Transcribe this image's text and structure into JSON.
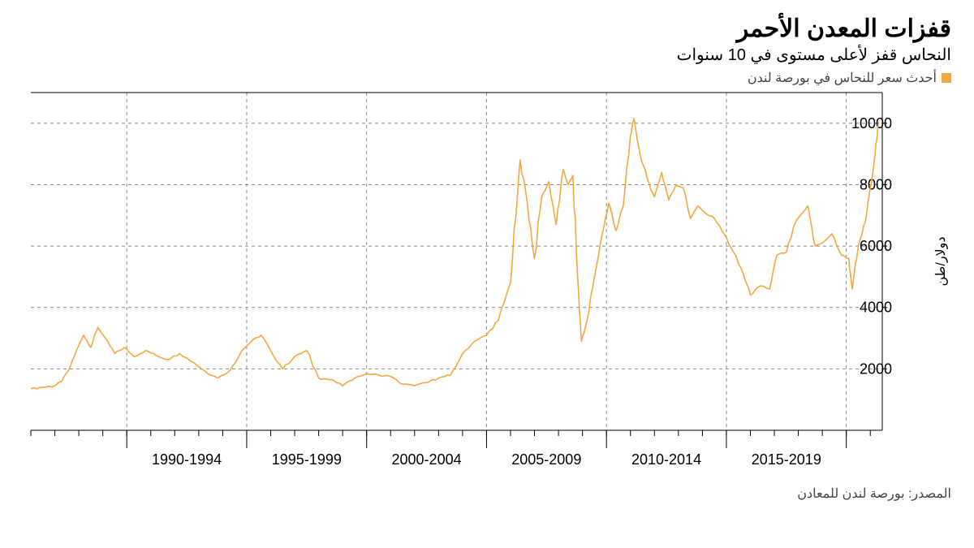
{
  "title": "قفزات المعدن الأحمر",
  "subtitle": "النحاس قفز لأعلى مستوى في 10 سنوات",
  "legend": {
    "label": "أحدث سعر للنحاس في بورصة لندن",
    "swatch_color": "#f5a742"
  },
  "source": "المصدر: بورصة لندن للمعادن",
  "chart": {
    "type": "line",
    "line_color": "#f5a742",
    "line_width": 1.6,
    "background_color": "#ffffff",
    "grid_color": "#888888",
    "grid_dash": "4 4",
    "border_color": "#000000",
    "y_axis": {
      "title": "دولار/طن",
      "min": 0,
      "max": 11000,
      "ticks": [
        2000,
        4000,
        6000,
        8000,
        10000
      ],
      "tick_fontsize": 18
    },
    "x_axis": {
      "min": 1986,
      "max": 2021.5,
      "group_labels": [
        "1990-1994",
        "1995-1999",
        "2000-2004",
        "2005-2009",
        "2010-2014",
        "2015-2019"
      ],
      "group_boundaries": [
        1990,
        1995,
        2000,
        2005,
        2010,
        2015,
        2020
      ],
      "minor_ticks": [
        1986,
        1987,
        1988,
        1989,
        1990,
        1991,
        1992,
        1993,
        1994,
        1995,
        1996,
        1997,
        1998,
        1999,
        2000,
        2001,
        2002,
        2003,
        2004,
        2005,
        2006,
        2007,
        2008,
        2009,
        2010,
        2011,
        2012,
        2013,
        2014,
        2015,
        2016,
        2017,
        2018,
        2019,
        2020,
        2021
      ],
      "tick_fontsize": 18
    },
    "series": [
      {
        "x": 1986.0,
        "y": 1350
      },
      {
        "x": 1986.5,
        "y": 1400
      },
      {
        "x": 1987.0,
        "y": 1450
      },
      {
        "x": 1987.3,
        "y": 1600
      },
      {
        "x": 1987.6,
        "y": 2000
      },
      {
        "x": 1987.9,
        "y": 2600
      },
      {
        "x": 1988.2,
        "y": 3100
      },
      {
        "x": 1988.5,
        "y": 2700
      },
      {
        "x": 1988.8,
        "y": 3350
      },
      {
        "x": 1989.1,
        "y": 3000
      },
      {
        "x": 1989.5,
        "y": 2500
      },
      {
        "x": 1989.9,
        "y": 2700
      },
      {
        "x": 1990.3,
        "y": 2400
      },
      {
        "x": 1990.8,
        "y": 2600
      },
      {
        "x": 1991.2,
        "y": 2450
      },
      {
        "x": 1991.7,
        "y": 2300
      },
      {
        "x": 1992.2,
        "y": 2500
      },
      {
        "x": 1992.8,
        "y": 2200
      },
      {
        "x": 1993.3,
        "y": 1900
      },
      {
        "x": 1993.8,
        "y": 1700
      },
      {
        "x": 1994.3,
        "y": 1950
      },
      {
        "x": 1994.8,
        "y": 2600
      },
      {
        "x": 1995.2,
        "y": 2900
      },
      {
        "x": 1995.6,
        "y": 3100
      },
      {
        "x": 1996.0,
        "y": 2600
      },
      {
        "x": 1996.5,
        "y": 2000
      },
      {
        "x": 1997.0,
        "y": 2400
      },
      {
        "x": 1997.5,
        "y": 2600
      },
      {
        "x": 1998.0,
        "y": 1700
      },
      {
        "x": 1998.5,
        "y": 1650
      },
      {
        "x": 1999.0,
        "y": 1450
      },
      {
        "x": 1999.5,
        "y": 1700
      },
      {
        "x": 2000.0,
        "y": 1850
      },
      {
        "x": 2000.5,
        "y": 1800
      },
      {
        "x": 2001.0,
        "y": 1750
      },
      {
        "x": 2001.5,
        "y": 1500
      },
      {
        "x": 2002.0,
        "y": 1450
      },
      {
        "x": 2002.5,
        "y": 1550
      },
      {
        "x": 2003.0,
        "y": 1700
      },
      {
        "x": 2003.5,
        "y": 1800
      },
      {
        "x": 2004.0,
        "y": 2500
      },
      {
        "x": 2004.5,
        "y": 2900
      },
      {
        "x": 2005.0,
        "y": 3100
      },
      {
        "x": 2005.5,
        "y": 3600
      },
      {
        "x": 2006.0,
        "y": 4800
      },
      {
        "x": 2006.3,
        "y": 7800
      },
      {
        "x": 2006.4,
        "y": 8800
      },
      {
        "x": 2006.7,
        "y": 7400
      },
      {
        "x": 2007.0,
        "y": 5600
      },
      {
        "x": 2007.3,
        "y": 7600
      },
      {
        "x": 2007.6,
        "y": 8100
      },
      {
        "x": 2007.9,
        "y": 6700
      },
      {
        "x": 2008.2,
        "y": 8500
      },
      {
        "x": 2008.4,
        "y": 8000
      },
      {
        "x": 2008.6,
        "y": 8300
      },
      {
        "x": 2008.8,
        "y": 5000
      },
      {
        "x": 2008.95,
        "y": 2900
      },
      {
        "x": 2009.2,
        "y": 3600
      },
      {
        "x": 2009.5,
        "y": 5000
      },
      {
        "x": 2009.8,
        "y": 6300
      },
      {
        "x": 2010.1,
        "y": 7400
      },
      {
        "x": 2010.4,
        "y": 6500
      },
      {
        "x": 2010.7,
        "y": 7300
      },
      {
        "x": 2011.0,
        "y": 9600
      },
      {
        "x": 2011.15,
        "y": 10150
      },
      {
        "x": 2011.4,
        "y": 9000
      },
      {
        "x": 2011.7,
        "y": 8200
      },
      {
        "x": 2012.0,
        "y": 7600
      },
      {
        "x": 2012.3,
        "y": 8400
      },
      {
        "x": 2012.6,
        "y": 7500
      },
      {
        "x": 2012.9,
        "y": 8000
      },
      {
        "x": 2013.2,
        "y": 7900
      },
      {
        "x": 2013.5,
        "y": 6900
      },
      {
        "x": 2013.8,
        "y": 7300
      },
      {
        "x": 2014.1,
        "y": 7100
      },
      {
        "x": 2014.5,
        "y": 6900
      },
      {
        "x": 2014.9,
        "y": 6400
      },
      {
        "x": 2015.3,
        "y": 5800
      },
      {
        "x": 2015.7,
        "y": 5100
      },
      {
        "x": 2016.0,
        "y": 4400
      },
      {
        "x": 2016.4,
        "y": 4700
      },
      {
        "x": 2016.8,
        "y": 4600
      },
      {
        "x": 2017.1,
        "y": 5700
      },
      {
        "x": 2017.5,
        "y": 5800
      },
      {
        "x": 2017.9,
        "y": 6800
      },
      {
        "x": 2018.2,
        "y": 7100
      },
      {
        "x": 2018.4,
        "y": 7300
      },
      {
        "x": 2018.7,
        "y": 6000
      },
      {
        "x": 2019.0,
        "y": 6100
      },
      {
        "x": 2019.4,
        "y": 6400
      },
      {
        "x": 2019.8,
        "y": 5700
      },
      {
        "x": 2020.1,
        "y": 5600
      },
      {
        "x": 2020.25,
        "y": 4600
      },
      {
        "x": 2020.5,
        "y": 6000
      },
      {
        "x": 2020.8,
        "y": 6800
      },
      {
        "x": 2021.0,
        "y": 7900
      },
      {
        "x": 2021.2,
        "y": 9000
      },
      {
        "x": 2021.35,
        "y": 10050
      }
    ]
  }
}
